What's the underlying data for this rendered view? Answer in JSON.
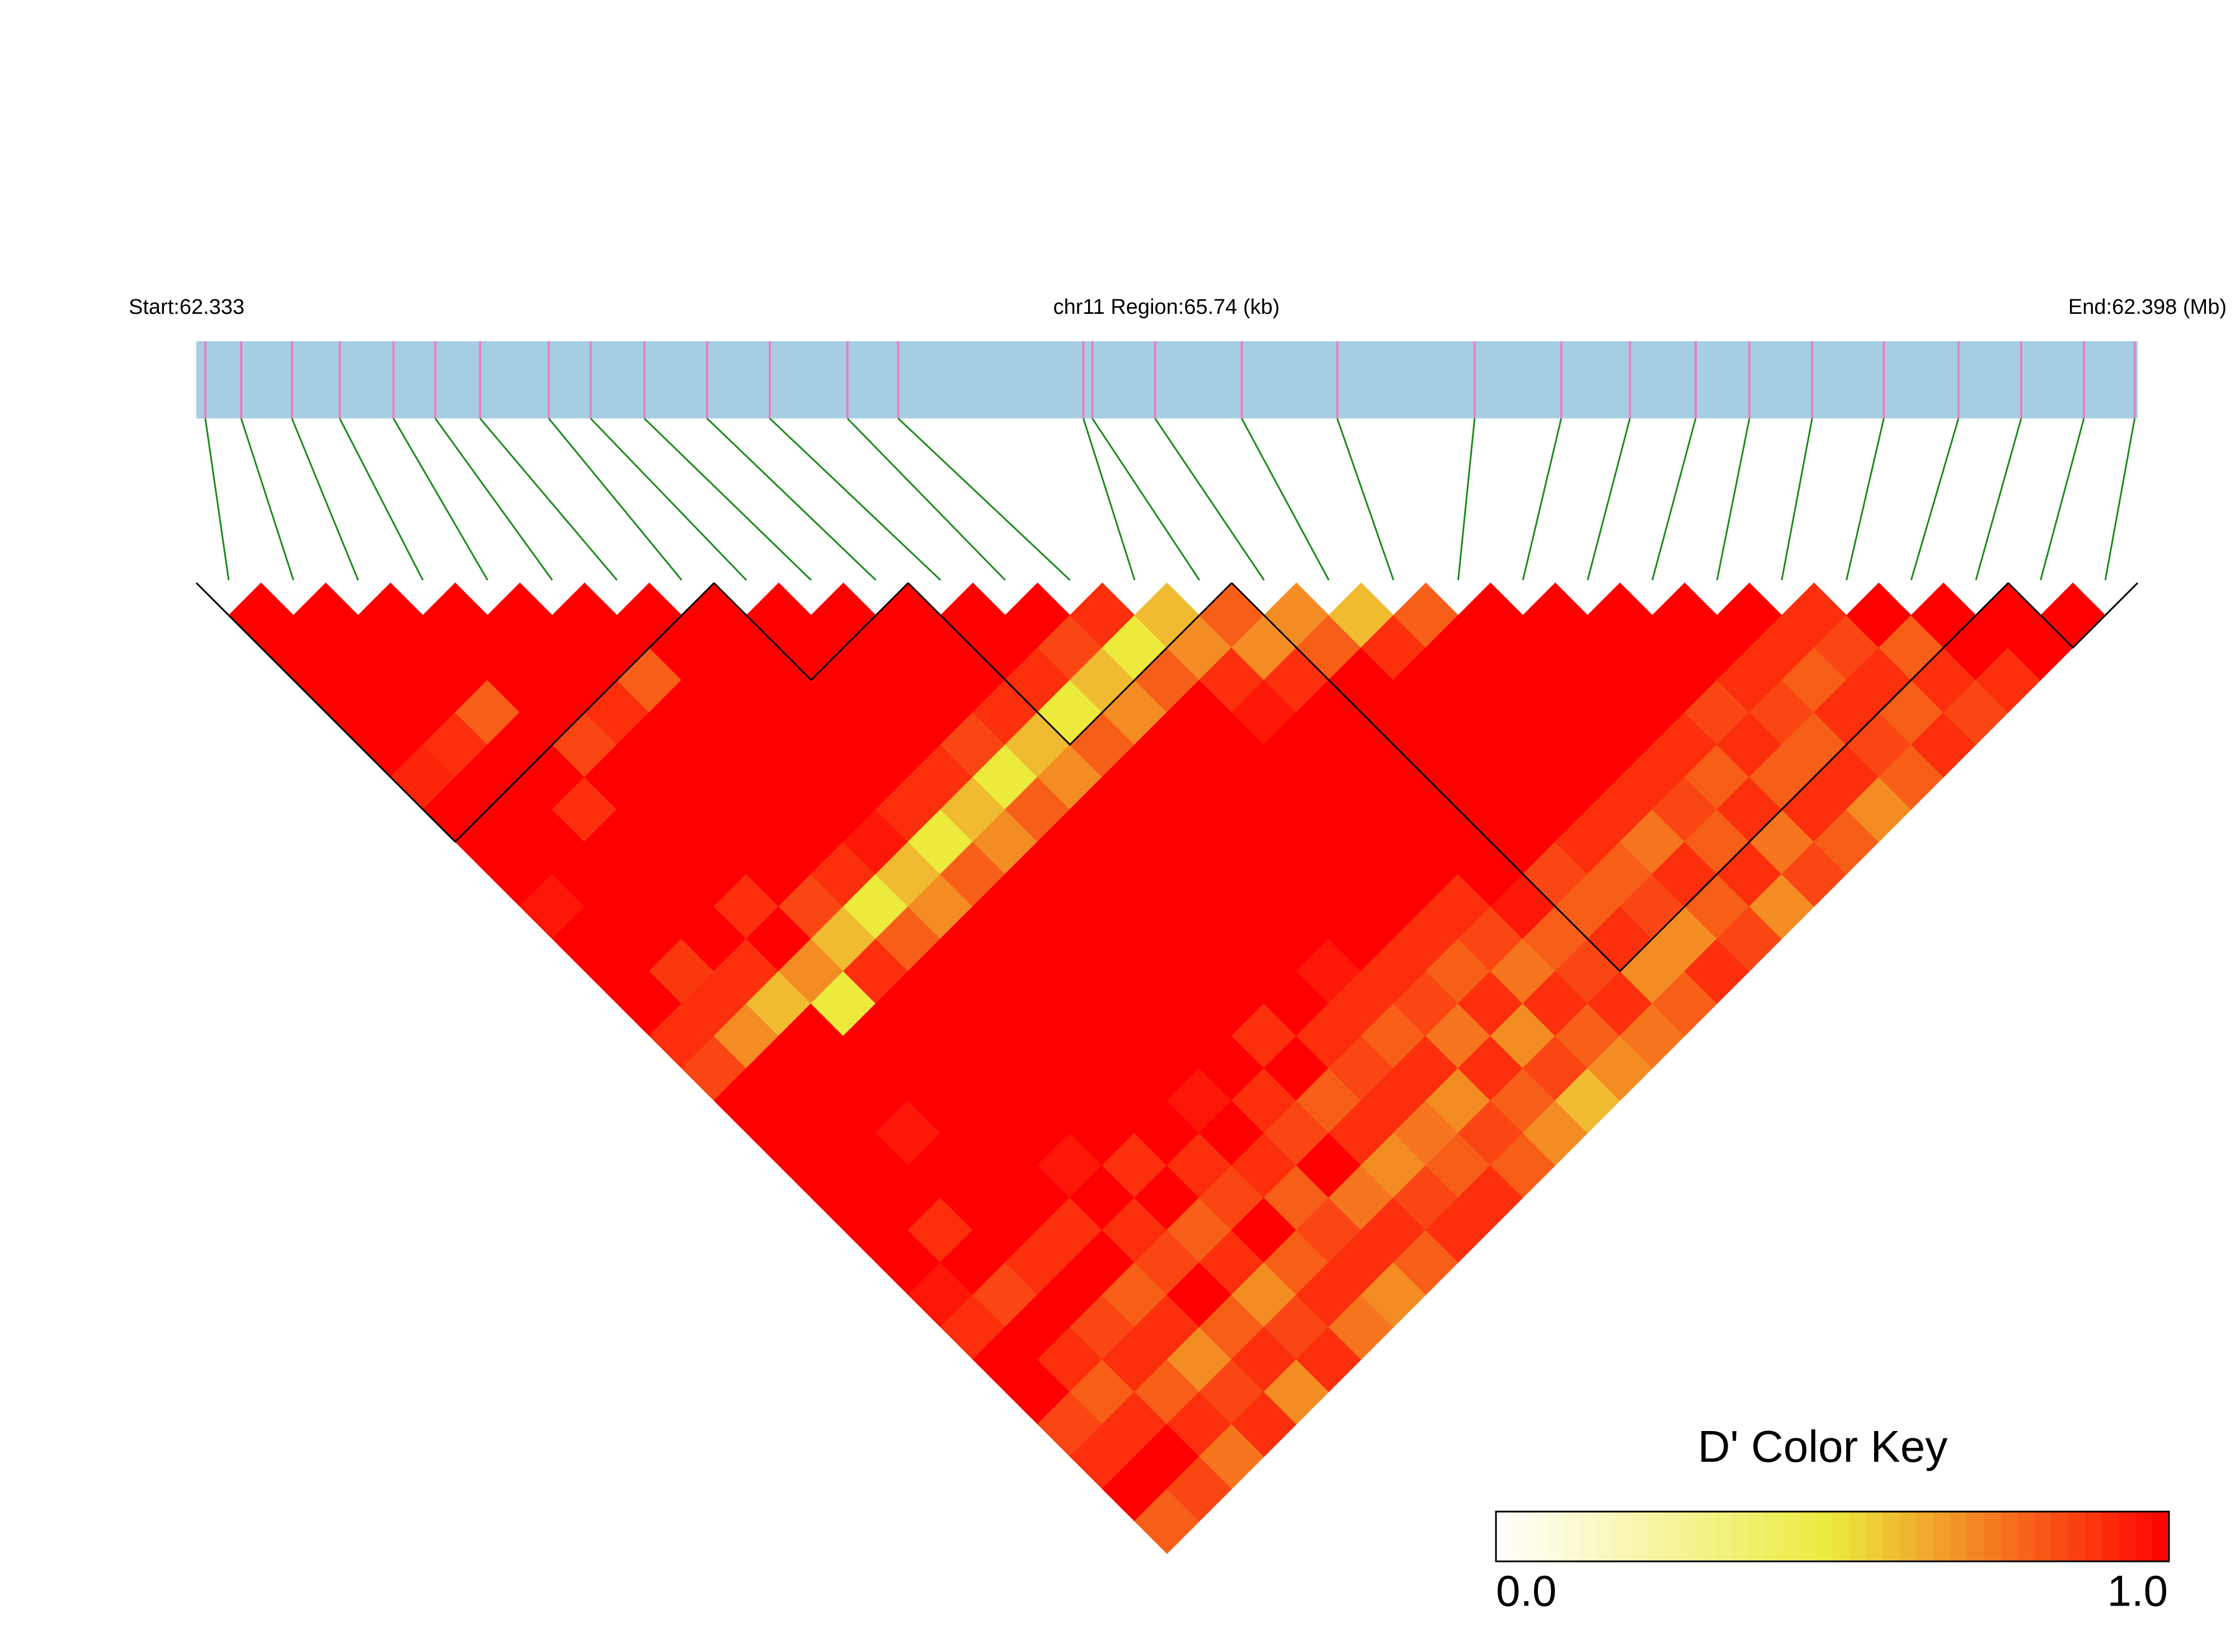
{
  "chart_data": {
    "type": "ld_heatmap",
    "start_prefix": "Start:",
    "start": 62.333,
    "region_label": "chr11 Region:65.74 (kb)",
    "end_prefix": "End:",
    "end": 62.398,
    "end_unit": "(Mb)",
    "track_color": "#a6cee3",
    "snp_color": "#e87fc0",
    "connector_color": "#1a8a1a",
    "snp_positions": [
      62.3333,
      62.3345,
      62.3362,
      62.3378,
      62.3396,
      62.341,
      62.3425,
      62.3448,
      62.3462,
      62.348,
      62.3501,
      62.3522,
      62.3548,
      62.3565,
      62.3627,
      62.363,
      62.3651,
      62.368,
      62.3712,
      62.3758,
      62.3787,
      62.381,
      62.3832,
      62.385,
      62.3871,
      62.3895,
      62.392,
      62.3941,
      62.3962,
      62.3979
    ],
    "dprime": [
      [
        1,
        1,
        1,
        1,
        1,
        0.92,
        1,
        1,
        1,
        0.95,
        1,
        1,
        1,
        0.9,
        0.85,
        1,
        1,
        1,
        1,
        1,
        1,
        0.95,
        0.9,
        1,
        1,
        0.85,
        0.9,
        1,
        0.8
      ],
      [
        1,
        1,
        1,
        1,
        0.9,
        1,
        1,
        1,
        1,
        1,
        1,
        0.88,
        0.9,
        0.7,
        1,
        1,
        1,
        1,
        1,
        0.9,
        1,
        0.85,
        1,
        0.9,
        0.8,
        0.9,
        1,
        0.85
      ],
      [
        1,
        1,
        1,
        0.8,
        1,
        1,
        0.9,
        1,
        1,
        1,
        1,
        0.9,
        0.6,
        1,
        1,
        1,
        0.95,
        1,
        1,
        1,
        0.9,
        1,
        0.85,
        0.9,
        0.8,
        0.9,
        0.75
      ],
      [
        1,
        1,
        1,
        1,
        0.85,
        1,
        1,
        1,
        1,
        0.9,
        1,
        0.7,
        0.5,
        1,
        1,
        1,
        1,
        1,
        1,
        0.9,
        1,
        0.8,
        0.9,
        0.7,
        0.85,
        0.9
      ],
      [
        1,
        1,
        1,
        0.9,
        1,
        1,
        1,
        1,
        1,
        0.85,
        0.6,
        0.9,
        1,
        1,
        1,
        1,
        1,
        0.95,
        1,
        0.9,
        0.85,
        1,
        0.8,
        0.9,
        0.7
      ],
      [
        1,
        1,
        0.8,
        1,
        1,
        1,
        1,
        1,
        0.9,
        0.5,
        0.8,
        1,
        1,
        1,
        1,
        1,
        1,
        0.9,
        1,
        0.8,
        0.9,
        0.7,
        0.85,
        0.9
      ],
      [
        1,
        1,
        1,
        1,
        1,
        1,
        1,
        0.95,
        0.6,
        0.7,
        1,
        1,
        1,
        1,
        1,
        1,
        1,
        0.9,
        0.85,
        1,
        0.8,
        0.9,
        0.75
      ],
      [
        1,
        1,
        1,
        1,
        1,
        1,
        0.9,
        0.5,
        0.8,
        1,
        1,
        1,
        1,
        1,
        1,
        0.95,
        1,
        0.9,
        0.8,
        0.85,
        0.9,
        0.7
      ],
      [
        1,
        1,
        1,
        1,
        1,
        0.9,
        0.6,
        0.7,
        1,
        1,
        1,
        1,
        1,
        1,
        1,
        0.9,
        0.85,
        1,
        0.75,
        0.9,
        0.8
      ],
      [
        1,
        1,
        1,
        1,
        0.85,
        0.5,
        0.8,
        1,
        1,
        1,
        1,
        1,
        1,
        0.9,
        1,
        0.8,
        0.9,
        0.7,
        0.85,
        0.9
      ],
      [
        1,
        1,
        1,
        0.9,
        0.6,
        0.7,
        1,
        1,
        1,
        1,
        1,
        1,
        1,
        0.9,
        0.85,
        0.9,
        0.75,
        0.8,
        0.9
      ],
      [
        1,
        1,
        0.9,
        0.5,
        0.8,
        1,
        1,
        1,
        1,
        1,
        1,
        0.95,
        0.9,
        0.8,
        0.9,
        0.7,
        0.85,
        0.8
      ],
      [
        1,
        0.85,
        0.6,
        0.7,
        1,
        1,
        1,
        1,
        1,
        1,
        1,
        0.9,
        0.85,
        0.75,
        0.9,
        0.8,
        0.7
      ],
      [
        0.9,
        0.5,
        0.8,
        1,
        1,
        1,
        1,
        1,
        1,
        1,
        0.9,
        0.8,
        0.9,
        0.7,
        0.85,
        0.6
      ],
      [
        0.6,
        0.7,
        0.9,
        0.95,
        1,
        1,
        1,
        1,
        1,
        0.9,
        0.85,
        0.75,
        0.9,
        0.8,
        0.7
      ],
      [
        0.8,
        0.7,
        0.9,
        1,
        1,
        1,
        1,
        1,
        1,
        0.95,
        0.8,
        0.85,
        0.9,
        0.75
      ],
      [
        0.7,
        0.8,
        1,
        1,
        1,
        1,
        1,
        1,
        0.85,
        0.8,
        0.9,
        0.7,
        0.8
      ],
      [
        0.6,
        0.9,
        1,
        1,
        1,
        1,
        1,
        0.9,
        0.8,
        0.85,
        0.7,
        0.9
      ],
      [
        0.8,
        1,
        1,
        1,
        1,
        1,
        0.9,
        0.75,
        0.9,
        0.8,
        0.85
      ],
      [
        1,
        1,
        1,
        1,
        1,
        0.9,
        0.85,
        0.8,
        0.9,
        0.7
      ],
      [
        1,
        1,
        1,
        1,
        0.9,
        0.8,
        0.9,
        0.75,
        0.85
      ],
      [
        1,
        1,
        1,
        0.85,
        0.9,
        0.8,
        0.9,
        0.8
      ],
      [
        1,
        1,
        0.9,
        0.85,
        0.8,
        0.9,
        0.7
      ],
      [
        1,
        0.9,
        0.8,
        0.9,
        0.85,
        0.8
      ],
      [
        0.9,
        0.85,
        0.9,
        0.8,
        0.9
      ],
      [
        1,
        0.8,
        0.9,
        0.85
      ],
      [
        1,
        1,
        0.9
      ],
      [
        1,
        1
      ],
      [
        1
      ]
    ],
    "blocks": [
      [
        0,
        7
      ],
      [
        8,
        10
      ],
      [
        11,
        15
      ],
      [
        16,
        27
      ],
      [
        28,
        29
      ]
    ],
    "color_scale": [
      "#ffffff",
      "#ecea3c",
      "#ff0000"
    ],
    "key_title": "D' Color Key",
    "key_lim": [
      0,
      1
    ],
    "key_ticks": [
      {
        "value": 0,
        "label": "0.0"
      },
      {
        "value": 1,
        "label": "1.0"
      }
    ]
  }
}
